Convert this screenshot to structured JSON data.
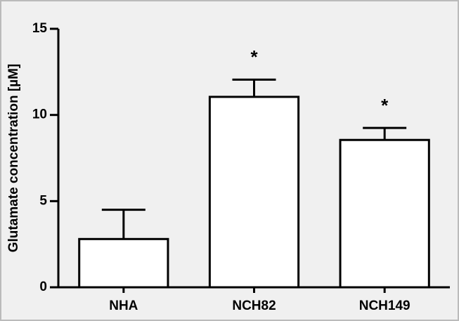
{
  "chart_data": {
    "type": "bar",
    "ylabel": "Glutamate concentration [µM]",
    "categories": [
      "NHA",
      "NCH82",
      "NCH149"
    ],
    "values": [
      2.8,
      11.05,
      8.55
    ],
    "errors": [
      1.7,
      1.0,
      0.7
    ],
    "color": "#ffffff",
    "ylim": [
      0,
      15
    ],
    "yticks": [
      0,
      5,
      10,
      15
    ],
    "grid": false,
    "annotations": [
      {
        "text": "*",
        "category": "NCH82"
      },
      {
        "text": "*",
        "category": "NCH149"
      }
    ]
  }
}
